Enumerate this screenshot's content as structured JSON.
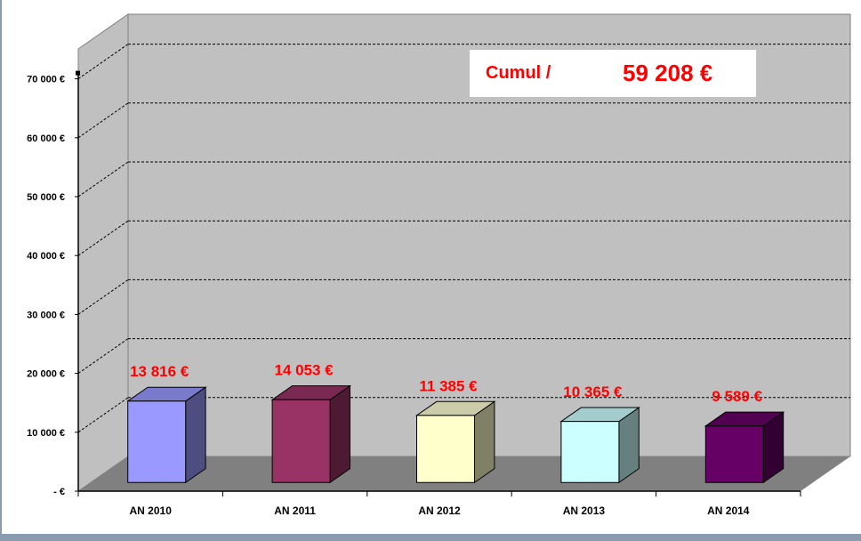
{
  "chart_data": {
    "type": "bar",
    "style": "3d",
    "categories": [
      "AN 2010",
      "AN 2011",
      "AN 2012",
      "AN 2013",
      "AN 2014"
    ],
    "values": [
      13816,
      14053,
      11385,
      10365,
      9589
    ],
    "data_labels": [
      "13 816 €",
      "14 053 €",
      "11 385 €",
      "10 365 €",
      "9 589 €"
    ],
    "ylim": [
      0,
      70000
    ],
    "yticks": [
      0,
      10000,
      20000,
      30000,
      40000,
      50000,
      60000,
      70000
    ],
    "ytick_labels": [
      "-   €",
      "10 000 €",
      "20 000 €",
      "30 000 €",
      "40 000 €",
      "50 000 €",
      "60 000 €",
      "70 000 €"
    ],
    "grid": true,
    "legend": "none",
    "colors": {
      "bars_front": [
        "#9999ff",
        "#993366",
        "#ffffcc",
        "#ccffff",
        "#660066"
      ],
      "bars_side": [
        "#4d4d80",
        "#4d1a33",
        "#808066",
        "#668080",
        "#330033"
      ],
      "bars_top": [
        "#7a7acc",
        "#7a2952",
        "#ccccaa",
        "#a3cccc",
        "#520052"
      ],
      "back_wall": "#c0c0c0",
      "side_wall": "#c0c0c0",
      "floor": "#808080",
      "data_label": "#ff0000",
      "page_edge": "#8a9bb0"
    }
  },
  "annotation": {
    "label": "Cumul /",
    "value": "59 208 €",
    "color": "#ff0000"
  }
}
